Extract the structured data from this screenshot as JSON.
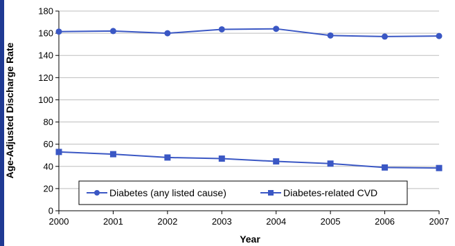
{
  "chart_data": {
    "type": "line",
    "xlabel": "Year",
    "ylabel": "Age-Adjusted Discharge Rate",
    "x": [
      "2000",
      "2001",
      "2002",
      "2003",
      "2004",
      "2005",
      "2006",
      "2007"
    ],
    "ylim": [
      0,
      180
    ],
    "yticks": [
      0,
      20,
      40,
      60,
      80,
      100,
      120,
      140,
      160,
      180
    ],
    "grid": true,
    "legend": "bottom",
    "series": [
      {
        "name": "Diabetes (any listed cause)",
        "marker": "circle",
        "color": "#3a57c4",
        "values": [
          161.5,
          162,
          160,
          163.5,
          164,
          158,
          157,
          157.5
        ]
      },
      {
        "name": "Diabetes-related CVD",
        "marker": "square",
        "color": "#3a57c4",
        "values": [
          53,
          51,
          48,
          47,
          44.5,
          42.5,
          39,
          38.5
        ]
      }
    ]
  }
}
